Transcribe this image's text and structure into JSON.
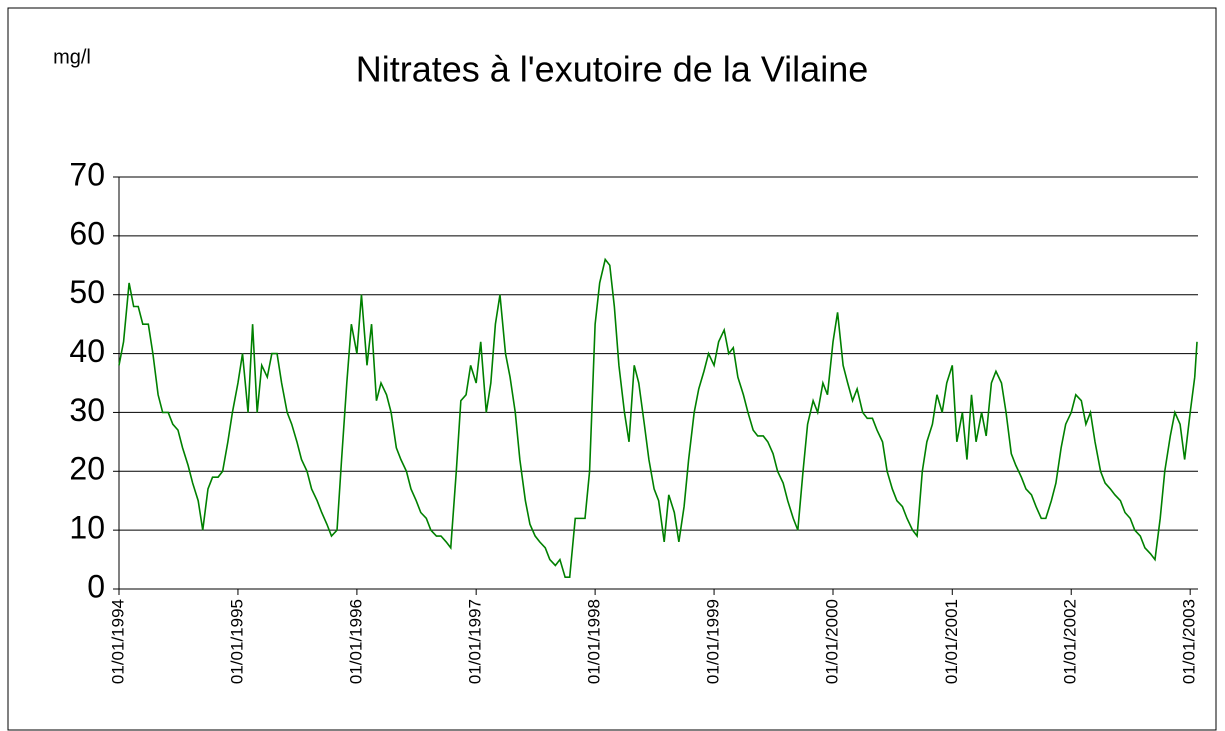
{
  "chart_data": {
    "type": "line",
    "title": "Nitrates à l'exutoire de la Vilaine",
    "y_label": "mg/l",
    "color": "#008000",
    "grid": true,
    "ylim": [
      0,
      70
    ],
    "yticks": [
      0,
      10,
      20,
      30,
      40,
      50,
      60,
      70
    ],
    "xlim": [
      "01/01/1994",
      "25/01/2003"
    ],
    "xticks": [
      "01/01/1994",
      "01/01/1995",
      "01/01/1996",
      "01/01/1997",
      "01/01/1998",
      "01/01/1999",
      "01/01/2000",
      "01/01/2001",
      "01/01/2002",
      "01/01/2003"
    ],
    "x": [
      "01/01/1994",
      "15/01/1994",
      "01/02/1994",
      "15/02/1994",
      "01/03/1994",
      "15/03/1994",
      "01/04/1994",
      "15/04/1994",
      "01/05/1994",
      "15/05/1994",
      "01/06/1994",
      "15/06/1994",
      "01/07/1994",
      "15/07/1994",
      "01/08/1994",
      "15/08/1994",
      "01/09/1994",
      "15/09/1994",
      "01/10/1994",
      "15/10/1994",
      "01/11/1994",
      "15/11/1994",
      "01/12/1994",
      "15/12/1994",
      "01/01/1995",
      "15/01/1995",
      "01/02/1995",
      "15/02/1995",
      "01/03/1995",
      "15/03/1995",
      "01/04/1995",
      "15/04/1995",
      "01/05/1995",
      "15/05/1995",
      "01/06/1995",
      "15/06/1995",
      "01/07/1995",
      "15/07/1995",
      "01/08/1995",
      "15/08/1995",
      "01/09/1995",
      "15/09/1995",
      "01/10/1995",
      "15/10/1995",
      "01/11/1995",
      "15/11/1995",
      "01/12/1995",
      "15/12/1995",
      "01/01/1996",
      "15/01/1996",
      "01/02/1996",
      "15/02/1996",
      "01/03/1996",
      "15/03/1996",
      "01/04/1996",
      "15/04/1996",
      "01/05/1996",
      "15/05/1996",
      "01/06/1996",
      "15/06/1996",
      "01/07/1996",
      "15/07/1996",
      "01/08/1996",
      "15/08/1996",
      "01/09/1996",
      "15/09/1996",
      "01/10/1996",
      "15/10/1996",
      "01/11/1996",
      "15/11/1996",
      "01/12/1996",
      "15/12/1996",
      "01/01/1997",
      "15/01/1997",
      "01/02/1997",
      "15/02/1997",
      "01/03/1997",
      "15/03/1997",
      "01/04/1997",
      "15/04/1997",
      "01/05/1997",
      "15/05/1997",
      "01/06/1997",
      "15/06/1997",
      "01/07/1997",
      "15/07/1997",
      "01/08/1997",
      "15/08/1997",
      "01/09/1997",
      "15/09/1997",
      "01/10/1997",
      "15/10/1997",
      "01/11/1997",
      "15/11/1997",
      "01/12/1997",
      "15/12/1997",
      "01/01/1998",
      "15/01/1998",
      "01/02/1998",
      "15/02/1998",
      "01/03/1998",
      "15/03/1998",
      "01/04/1998",
      "15/04/1998",
      "01/05/1998",
      "15/05/1998",
      "01/06/1998",
      "15/06/1998",
      "01/07/1998",
      "15/07/1998",
      "01/08/1998",
      "15/08/1998",
      "01/09/1998",
      "15/09/1998",
      "01/10/1998",
      "15/10/1998",
      "01/11/1998",
      "15/11/1998",
      "01/12/1998",
      "15/12/1998",
      "01/01/1999",
      "15/01/1999",
      "01/02/1999",
      "15/02/1999",
      "01/03/1999",
      "15/03/1999",
      "01/04/1999",
      "15/04/1999",
      "01/05/1999",
      "15/05/1999",
      "01/06/1999",
      "15/06/1999",
      "01/07/1999",
      "15/07/1999",
      "01/08/1999",
      "15/08/1999",
      "01/09/1999",
      "15/09/1999",
      "01/10/1999",
      "15/10/1999",
      "01/11/1999",
      "15/11/1999",
      "01/12/1999",
      "15/12/1999",
      "01/01/2000",
      "15/01/2000",
      "01/02/2000",
      "15/02/2000",
      "01/03/2000",
      "15/03/2000",
      "01/04/2000",
      "15/04/2000",
      "01/05/2000",
      "15/05/2000",
      "01/06/2000",
      "15/06/2000",
      "01/07/2000",
      "15/07/2000",
      "01/08/2000",
      "15/08/2000",
      "01/09/2000",
      "15/09/2000",
      "01/10/2000",
      "15/10/2000",
      "01/11/2000",
      "15/11/2000",
      "01/12/2000",
      "15/12/2000",
      "01/01/2001",
      "15/01/2001",
      "01/02/2001",
      "15/02/2001",
      "01/03/2001",
      "15/03/2001",
      "01/04/2001",
      "15/04/2001",
      "01/05/2001",
      "15/05/2001",
      "01/06/2001",
      "15/06/2001",
      "01/07/2001",
      "15/07/2001",
      "01/08/2001",
      "15/08/2001",
      "01/09/2001",
      "15/09/2001",
      "01/10/2001",
      "15/10/2001",
      "01/11/2001",
      "15/11/2001",
      "01/12/2001",
      "15/12/2001",
      "01/01/2002",
      "15/01/2002",
      "01/02/2002",
      "15/02/2002",
      "01/03/2002",
      "15/03/2002",
      "01/04/2002",
      "15/04/2002",
      "01/05/2002",
      "15/05/2002",
      "01/06/2002",
      "15/06/2002",
      "01/07/2002",
      "15/07/2002",
      "01/08/2002",
      "15/08/2002",
      "01/09/2002",
      "15/09/2002",
      "01/10/2002",
      "15/10/2002",
      "01/11/2002",
      "15/11/2002",
      "01/12/2002",
      "15/12/2002",
      "01/01/2003",
      "15/01/2003",
      "22/01/2003"
    ],
    "values": [
      38,
      42,
      52,
      48,
      48,
      45,
      45,
      40,
      33,
      30,
      30,
      28,
      27,
      24,
      21,
      18,
      15,
      10,
      17,
      19,
      19,
      20,
      25,
      30,
      35,
      40,
      30,
      45,
      30,
      38,
      36,
      40,
      40,
      35,
      30,
      28,
      25,
      22,
      20,
      17,
      15,
      13,
      11,
      9,
      10,
      22,
      35,
      45,
      40,
      50,
      38,
      45,
      32,
      35,
      33,
      30,
      24,
      22,
      20,
      17,
      15,
      13,
      12,
      10,
      9,
      9,
      8,
      7,
      20,
      32,
      33,
      38,
      35,
      42,
      30,
      35,
      45,
      50,
      40,
      36,
      30,
      22,
      15,
      11,
      9,
      8,
      7,
      5,
      4,
      5,
      2,
      2,
      12,
      12,
      12,
      20,
      45,
      52,
      56,
      55,
      48,
      38,
      30,
      25,
      38,
      35,
      28,
      22,
      17,
      15,
      8,
      16,
      13,
      8,
      14,
      22,
      30,
      34,
      37,
      40,
      38,
      42,
      44,
      40,
      41,
      36,
      33,
      30,
      27,
      26,
      26,
      25,
      23,
      20,
      18,
      15,
      12,
      10,
      20,
      28,
      32,
      30,
      35,
      33,
      42,
      47,
      38,
      35,
      32,
      34,
      30,
      29,
      29,
      27,
      25,
      20,
      17,
      15,
      14,
      12,
      10,
      9,
      20,
      25,
      28,
      33,
      30,
      35,
      38,
      25,
      30,
      22,
      33,
      25,
      30,
      26,
      35,
      37,
      35,
      30,
      23,
      21,
      19,
      17,
      16,
      14,
      12,
      12,
      15,
      18,
      24,
      28,
      30,
      33,
      32,
      28,
      30,
      25,
      20,
      18,
      17,
      16,
      15,
      13,
      12,
      10,
      9,
      7,
      6,
      5,
      12,
      20,
      26,
      30,
      28,
      22,
      30,
      36,
      42
    ]
  }
}
